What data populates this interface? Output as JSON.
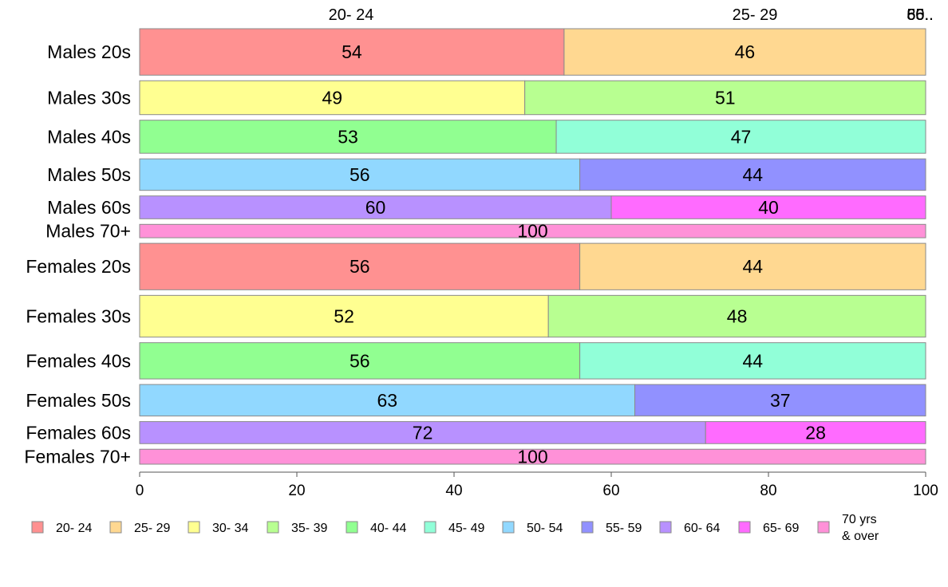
{
  "chart_data": {
    "type": "bar",
    "orientation": "horizontal",
    "stacked": true,
    "percent": true,
    "title": "",
    "xlabel": "",
    "ylabel": "",
    "xlim": [
      0,
      100
    ],
    "xticks": [
      0,
      20,
      40,
      60,
      80,
      100
    ],
    "grid": false,
    "legend_position": "bottom",
    "top_labels": [
      "20- 24",
      "25- 29",
      "80..",
      "55..",
      "66.."
    ],
    "categories": [
      "Males 20s",
      "Males 30s",
      "Males 40s",
      "Males 50s",
      "Males 60s",
      "Males 70+",
      "Females 20s",
      "Females 30s",
      "Females 40s",
      "Females 50s",
      "Females 60s",
      "Females 70+"
    ],
    "series": [
      {
        "name": "20- 24",
        "color": "#FF9191",
        "values": [
          54,
          0,
          0,
          0,
          0,
          0,
          56,
          0,
          0,
          0,
          0,
          0
        ]
      },
      {
        "name": "25- 29",
        "color": "#FFD891",
        "values": [
          46,
          0,
          0,
          0,
          0,
          0,
          44,
          0,
          0,
          0,
          0,
          0
        ]
      },
      {
        "name": "30- 34",
        "color": "#FFFF91",
        "values": [
          0,
          49,
          0,
          0,
          0,
          0,
          0,
          52,
          0,
          0,
          0,
          0
        ]
      },
      {
        "name": "35- 39",
        "color": "#B8FF91",
        "values": [
          0,
          51,
          0,
          0,
          0,
          0,
          0,
          48,
          0,
          0,
          0,
          0
        ]
      },
      {
        "name": "40- 44",
        "color": "#91FF91",
        "values": [
          0,
          0,
          53,
          0,
          0,
          0,
          0,
          0,
          56,
          0,
          0,
          0
        ]
      },
      {
        "name": "45- 49",
        "color": "#91FFD8",
        "values": [
          0,
          0,
          47,
          0,
          0,
          0,
          0,
          0,
          44,
          0,
          0,
          0
        ]
      },
      {
        "name": "50- 54",
        "color": "#91D8FF",
        "values": [
          0,
          0,
          0,
          56,
          0,
          0,
          0,
          0,
          0,
          63,
          0,
          0
        ]
      },
      {
        "name": "55- 59",
        "color": "#9191FF",
        "values": [
          0,
          0,
          0,
          44,
          0,
          0,
          0,
          0,
          0,
          37,
          0,
          0
        ]
      },
      {
        "name": "60- 64",
        "color": "#B891FF",
        "values": [
          0,
          0,
          0,
          0,
          60,
          0,
          0,
          0,
          0,
          0,
          72,
          0
        ]
      },
      {
        "name": "65- 69",
        "color": "#FF6BFF",
        "values": [
          0,
          0,
          0,
          0,
          40,
          0,
          0,
          0,
          0,
          0,
          28,
          0
        ]
      },
      {
        "name": "70 yrs\n& over",
        "color": "#FF91D8",
        "values": [
          0,
          0,
          0,
          0,
          0,
          100,
          0,
          0,
          0,
          0,
          0,
          100
        ]
      }
    ],
    "segment_labels": [
      [
        "54",
        "46"
      ],
      [
        "49",
        "51"
      ],
      [
        "53",
        "47"
      ],
      [
        "56",
        "44"
      ],
      [
        "60",
        "40"
      ],
      [
        "100"
      ],
      [
        "56",
        "44"
      ],
      [
        "52",
        "48"
      ],
      [
        "56",
        "44"
      ],
      [
        "63",
        "37"
      ],
      [
        "72",
        "28"
      ],
      [
        "100"
      ]
    ],
    "row_weights": [
      59,
      43,
      42,
      40,
      29,
      17,
      59,
      53,
      46,
      40,
      28,
      19
    ]
  }
}
